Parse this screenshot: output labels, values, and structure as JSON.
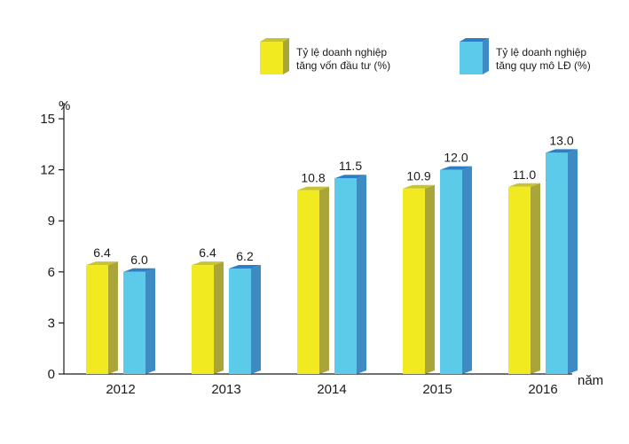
{
  "chart_data": {
    "type": "bar",
    "categories": [
      "2012",
      "2013",
      "2014",
      "2015",
      "2016"
    ],
    "series": [
      {
        "name": "Tỷ lệ doanh nghiệp tăng vốn đầu tư (%)",
        "values": [
          6.4,
          6.4,
          10.8,
          10.9,
          11.0
        ],
        "legend_lines": [
          "Tỷ lệ doanh nghiệp",
          "tăng vốn đầu tư (%)"
        ]
      },
      {
        "name": "Tỷ lệ doanh nghiệp tăng quy mô LĐ (%)",
        "values": [
          6.0,
          6.2,
          11.5,
          12.0,
          13.0
        ],
        "legend_lines": [
          "Tỷ lệ doanh nghiệp",
          "tăng quy mô LĐ (%)"
        ]
      }
    ],
    "data_labels": [
      [
        "6.4",
        "6.4",
        "10.8",
        "10.9",
        "11.0"
      ],
      [
        "6.0",
        "6.2",
        "11.5",
        "12.0",
        "13.0"
      ]
    ],
    "y_ticks": [
      "0",
      "3",
      "6",
      "9",
      "12",
      "15"
    ],
    "ylim": [
      0,
      15
    ],
    "ylabel": "%",
    "xlabel": "năm",
    "grid": false,
    "legend_position": "top-right",
    "colors": {
      "series1_front": "#f2ea21",
      "series1_side": "#a9a538",
      "series1_top": "#c9c42a",
      "series2_front": "#5ccbea",
      "series2_side": "#3e8bc4",
      "series2_top": "#2b7fc4",
      "axis": "#1a1a1a"
    }
  }
}
